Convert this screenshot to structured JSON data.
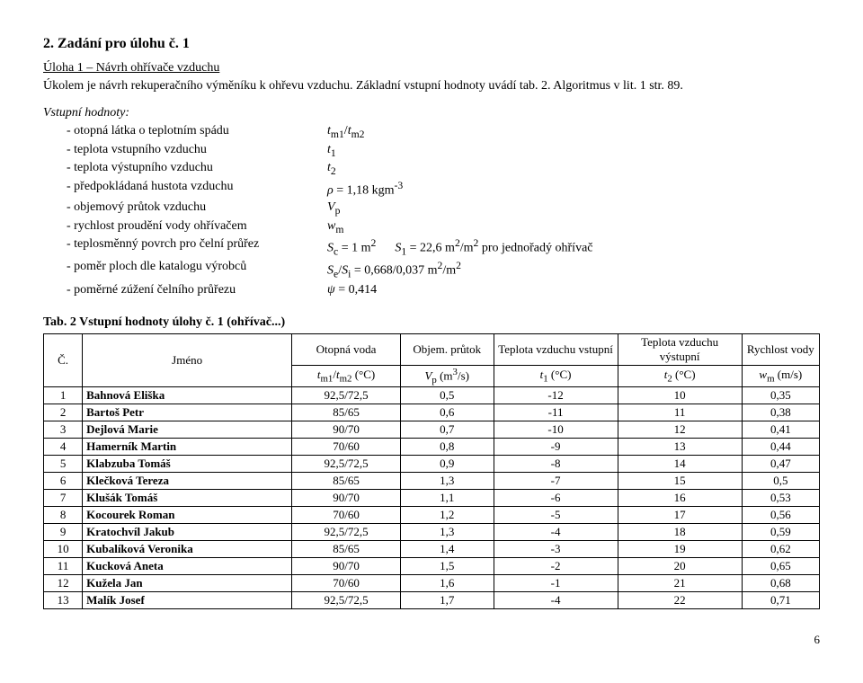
{
  "heading": "2. Zadání pro úlohu č. 1",
  "sub_heading": "Úloha 1 – Návrh ohřívače vzduchu",
  "intro_text": "Úkolem je návrh rekuperačního výměníku k ohřevu vzduchu. Základní vstupní hodnoty uvádí tab. 2. Algoritmus v lit. 1 str. 89.",
  "params_title": "Vstupní hodnoty:",
  "params": [
    {
      "label": "- otopná látka o teplotním spádu",
      "value_html": "<i>t</i><sub>m1</sub>/<i>t</i><sub>m2</sub>"
    },
    {
      "label": "- teplota vstupního vzduchu",
      "value_html": "<i>t</i><sub>1</sub>"
    },
    {
      "label": "- teplota výstupního vzduchu",
      "value_html": "<i>t</i><sub>2</sub>"
    },
    {
      "label": "- předpokládaná hustota vzduchu",
      "value_html": "<i>ρ</i> = 1,18 kgm<sup>-3</sup>"
    },
    {
      "label": "- objemový průtok vzduchu",
      "value_html": "<i>V</i><sub>p</sub>"
    },
    {
      "label": "- rychlost proudění vody ohřívačem",
      "value_html": "<i>w</i><sub>m</sub>"
    },
    {
      "label": "- teplosměnný povrch pro čelní průřez",
      "value_html": "<i>S</i><sub>c</sub> = 1 m<sup>2</sup>&nbsp;&nbsp;&nbsp;&nbsp;&nbsp;&nbsp;<i>S</i><sub>1</sub> = 22,6 m<sup>2</sup>/m<sup>2</sup> pro jednořadý ohřívač"
    },
    {
      "label": "- poměr ploch dle katalogu výrobců",
      "value_html": "<i>S</i><sub>e</sub>/<i>S</i><sub>i</sub> = 0,668/0,037 m<sup>2</sup>/m<sup>2</sup>"
    },
    {
      "label": "- poměrné zúžení čelního průřezu",
      "value_html": "<i>ψ</i> = 0,414"
    }
  ],
  "table_caption": "Tab. 2 Vstupní hodnoty úlohy č. 1 (ohřívač...)",
  "headers": {
    "col1_top": "Č.",
    "col2_top": "Jméno",
    "col3_top": "Otopná voda",
    "col3_bot_html": "<i>t</i><sub>m1</sub>/<i>t</i><sub>m2</sub> (°C)",
    "col4_top": "Objem. průtok",
    "col4_bot_html": "<i>V</i><sub>p</sub> (m<sup>3</sup>/s)",
    "col5_top": "Teplota vzduchu vstupní",
    "col5_bot_html": "<i>t</i><sub>1</sub> (°C)",
    "col6_top": "Teplota vzduchu výstupní",
    "col6_bot_html": "<i>t</i><sub>2</sub> (°C)",
    "col7_top": "Rychlost vody",
    "col7_bot_html": "<i>w</i><sub>m</sub> (m/s)"
  },
  "rows": [
    {
      "n": "1",
      "name": "Bahnová Eliška",
      "a": "92,5/72,5",
      "b": "0,5",
      "c": "-12",
      "d": "10",
      "e": "0,35"
    },
    {
      "n": "2",
      "name": "Bartoš Petr",
      "a": "85/65",
      "b": "0,6",
      "c": "-11",
      "d": "11",
      "e": "0,38"
    },
    {
      "n": "3",
      "name": "Dejlová Marie",
      "a": "90/70",
      "b": "0,7",
      "c": "-10",
      "d": "12",
      "e": "0,41"
    },
    {
      "n": "4",
      "name": "Hamerník Martin",
      "a": "70/60",
      "b": "0,8",
      "c": "-9",
      "d": "13",
      "e": "0,44"
    },
    {
      "n": "5",
      "name": "Klabzuba Tomáš",
      "a": "92,5/72,5",
      "b": "0,9",
      "c": "-8",
      "d": "14",
      "e": "0,47"
    },
    {
      "n": "6",
      "name": "Klečková Tereza",
      "a": "85/65",
      "b": "1,3",
      "c": "-7",
      "d": "15",
      "e": "0,5"
    },
    {
      "n": "7",
      "name": "Klušák Tomáš",
      "a": "90/70",
      "b": "1,1",
      "c": "-6",
      "d": "16",
      "e": "0,53"
    },
    {
      "n": "8",
      "name": "Kocourek Roman",
      "a": "70/60",
      "b": "1,2",
      "c": "-5",
      "d": "17",
      "e": "0,56"
    },
    {
      "n": "9",
      "name": "Kratochvíl Jakub",
      "a": "92,5/72,5",
      "b": "1,3",
      "c": "-4",
      "d": "18",
      "e": "0,59"
    },
    {
      "n": "10",
      "name": "Kubalíková Veronika",
      "a": "85/65",
      "b": "1,4",
      "c": "-3",
      "d": "19",
      "e": "0,62"
    },
    {
      "n": "11",
      "name": "Kucková Aneta",
      "a": "90/70",
      "b": "1,5",
      "c": "-2",
      "d": "20",
      "e": "0,65"
    },
    {
      "n": "12",
      "name": "Kužela Jan",
      "a": "70/60",
      "b": "1,6",
      "c": "-1",
      "d": "21",
      "e": "0,68"
    },
    {
      "n": "13",
      "name": "Malík Josef",
      "a": "92,5/72,5",
      "b": "1,7",
      "c": "-4",
      "d": "22",
      "e": "0,71"
    }
  ],
  "page_number": "6"
}
